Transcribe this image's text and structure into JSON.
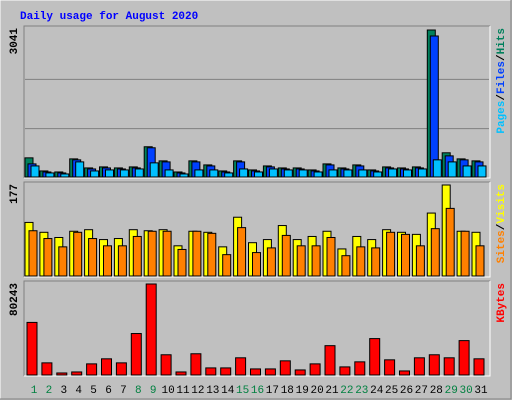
{
  "title": "Daily usage for August 2020",
  "legend_separator": "/",
  "categories": [
    "1",
    "2",
    "3",
    "4",
    "5",
    "6",
    "7",
    "8",
    "9",
    "10",
    "11",
    "12",
    "13",
    "14",
    "15",
    "16",
    "17",
    "18",
    "19",
    "20",
    "21",
    "22",
    "23",
    "24",
    "25",
    "26",
    "27",
    "28",
    "29",
    "30",
    "31"
  ],
  "category_colors": [
    "#008040",
    "#008040",
    "#000000",
    "#000000",
    "#000000",
    "#000000",
    "#000000",
    "#008040",
    "#008040",
    "#000000",
    "#000000",
    "#000000",
    "#000000",
    "#000000",
    "#008040",
    "#008040",
    "#000000",
    "#000000",
    "#000000",
    "#000000",
    "#000000",
    "#008040",
    "#008040",
    "#000000",
    "#000000",
    "#000000",
    "#000000",
    "#000000",
    "#008040",
    "#008040",
    "#000000"
  ],
  "chart_data": [
    {
      "type": "bar",
      "ylim": [
        0,
        3041
      ],
      "yticks": [
        3041
      ],
      "series": [
        {
          "name": "Hits",
          "color": "#00805c",
          "values": [
            414,
            145,
            124,
            393,
            207,
            228,
            207,
            228,
            642,
            352,
            124,
            352,
            269,
            145,
            352,
            166,
            248,
            207,
            207,
            166,
            290,
            207,
            269,
            166,
            228,
            207,
            228,
            3041,
            518,
            393,
            352
          ]
        },
        {
          "name": "Files",
          "color": "#0040ff",
          "values": [
            290,
            124,
            104,
            373,
            186,
            207,
            186,
            207,
            621,
            331,
            104,
            331,
            248,
            124,
            331,
            145,
            228,
            186,
            186,
            145,
            269,
            186,
            248,
            145,
            207,
            186,
            207,
            2918,
            455,
            373,
            331
          ]
        },
        {
          "name": "Pages",
          "color": "#00c0ff",
          "values": [
            248,
            104,
            83,
            331,
            145,
            166,
            166,
            186,
            311,
            166,
            83,
            166,
            166,
            104,
            186,
            124,
            186,
            166,
            166,
            124,
            166,
            166,
            166,
            124,
            186,
            166,
            186,
            373,
            331,
            248,
            248
          ]
        }
      ]
    },
    {
      "type": "bar",
      "ylim": [
        0,
        177
      ],
      "yticks": [
        177
      ],
      "series": [
        {
          "name": "Visits",
          "color": "#ffff00",
          "values": [
            105,
            86,
            76,
            88,
            91,
            72,
            74,
            91,
            89,
            91,
            60,
            88,
            86,
            58,
            115,
            66,
            72,
            99,
            72,
            78,
            88,
            54,
            78,
            72,
            91,
            86,
            82,
            123,
            177,
            88,
            86
          ]
        },
        {
          "name": "Sites",
          "color": "#ff8000",
          "values": [
            89,
            74,
            58,
            86,
            74,
            60,
            60,
            78,
            88,
            88,
            53,
            88,
            84,
            43,
            95,
            47,
            56,
            80,
            60,
            60,
            76,
            41,
            58,
            56,
            86,
            82,
            60,
            93,
            132,
            88,
            60
          ]
        }
      ]
    },
    {
      "type": "bar",
      "ylim": [
        0,
        80243
      ],
      "yticks": [
        80243
      ],
      "series": [
        {
          "name": "KBytes",
          "color": "#ff0000",
          "values": [
            46746,
            11466,
            2646,
            3528,
            10584,
            14994,
            11466,
            37044,
            80243,
            18522,
            3528,
            19404,
            7056,
            7056,
            15876,
            6174,
            6174,
            13230,
            5292,
            10584,
            26460,
            7938,
            12348,
            32634,
            14112,
            4410,
            15876,
            18522,
            15876,
            30870,
            14994
          ]
        }
      ]
    }
  ]
}
